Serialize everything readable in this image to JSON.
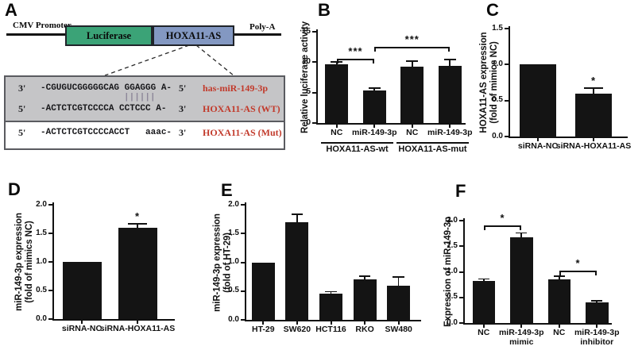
{
  "figure": {
    "background": "#ffffff",
    "bar_color": "#141414",
    "axis_color": "#111111"
  },
  "panels": {
    "a": {
      "letter": "A",
      "construct": {
        "promoter_label": "CMV Promoter",
        "gene_label": "Luciferase",
        "insert_label": "HOXA11-AS",
        "polya_label": "Poly-A",
        "gene_color": "#3ba377",
        "insert_color": "#8398c2"
      },
      "alignment": {
        "pairing_marks": "||||||",
        "pairing_color": "#8d8799",
        "name_color": "#c23a2b",
        "rows": [
          {
            "left": "3'",
            "seq": "-CGUGUCGGGGGCAG GGAGGG A-",
            "right": "5'",
            "name": "has-miR-149-3p"
          },
          {
            "left": "5'",
            "seq": "-ACTCTCGTCCCCA CCTCCC A-",
            "right": "3'",
            "name": "HOXA11-AS (WT)"
          },
          {
            "left": "5'",
            "seq": "-ACTCTCGTCCCCACCT   aaac-",
            "right": "3'",
            "name": "HOXA11-AS (Mut)"
          }
        ]
      }
    },
    "b": {
      "letter": "B"
    },
    "c": {
      "letter": "C"
    },
    "d": {
      "letter": "D"
    },
    "e": {
      "letter": "E"
    },
    "f": {
      "letter": "F"
    }
  },
  "chart_data": [
    {
      "id": "B",
      "type": "bar",
      "ylabel": "Relative luciferase activity",
      "categories": [
        "NC",
        "miR-149-3p",
        "NC",
        "miR-149-3p"
      ],
      "values": [
        9.6,
        5.3,
        9.3,
        9.4
      ],
      "errors": [
        0.4,
        0.4,
        0.9,
        1.0
      ],
      "ylim": [
        0,
        15
      ],
      "yticks": [
        "0",
        "5",
        "10",
        "15"
      ],
      "grid": false,
      "group_labels": [
        {
          "label": "HOXA11-AS-wt",
          "from": 0,
          "to": 1
        },
        {
          "label": "HOXA11-AS-mut",
          "from": 2,
          "to": 3
        }
      ],
      "brackets": [
        {
          "from": 0,
          "to": 1,
          "y": 10.6,
          "label": "***"
        },
        {
          "from": 1,
          "to": 3,
          "y": 12.5,
          "label": "***"
        }
      ]
    },
    {
      "id": "C",
      "type": "bar",
      "ylabel": [
        "HOXA11-AS expression",
        "(fold of mimics NC)"
      ],
      "categories": [
        "siRNA-NC",
        "siRNA-HOXA11-AS"
      ],
      "values": [
        1.0,
        0.6
      ],
      "errors": [
        0,
        0.07
      ],
      "ylim": [
        0,
        1.5
      ],
      "yticks": [
        "0.0",
        "0.5",
        "1.0",
        "1.5"
      ],
      "grid": false,
      "stars": [
        {
          "bar": 1,
          "label": "*"
        }
      ]
    },
    {
      "id": "D",
      "type": "bar",
      "ylabel": [
        "miR-149-3p expression",
        "(fold of mimics NC)"
      ],
      "categories": [
        "siRNA-NC",
        "siRNA-HOXA11-AS"
      ],
      "values": [
        1.0,
        1.6
      ],
      "errors": [
        0,
        0.07
      ],
      "ylim": [
        0,
        2.0
      ],
      "yticks": [
        "0.0",
        "0.5",
        "1.0",
        "1.5",
        "2.0"
      ],
      "grid": false,
      "stars": [
        {
          "bar": 1,
          "label": "*"
        }
      ]
    },
    {
      "id": "E",
      "type": "bar",
      "ylabel": [
        "miR-149-3p expression",
        "(fold of HT-29)"
      ],
      "categories": [
        "HT-29",
        "SW620",
        "HCT116",
        "RKO",
        "SW480"
      ],
      "values": [
        1.0,
        1.7,
        0.45,
        0.7,
        0.6
      ],
      "errors": [
        0,
        0.13,
        0.04,
        0.06,
        0.15
      ],
      "ylim": [
        0,
        2.0
      ],
      "yticks": [
        "0.0",
        "0.5",
        "1.0",
        "1.5",
        "2.0"
      ],
      "grid": false
    },
    {
      "id": "F",
      "type": "bar",
      "ylabel": "Expression of miR-149-3p",
      "categories": [
        "NC",
        [
          "miR-149-3p",
          "mimic"
        ],
        "NC",
        [
          "miR-149-3p",
          "inhibitor"
        ]
      ],
      "values": [
        0.82,
        1.67,
        0.86,
        0.4
      ],
      "errors": [
        0.04,
        0.09,
        0.05,
        0.03
      ],
      "ylim": [
        0,
        2.0
      ],
      "yticks": [
        "0.0",
        "0.5",
        "1.0",
        "1.5",
        "2.0"
      ],
      "grid": false,
      "brackets": [
        {
          "from": 0,
          "to": 1,
          "y": 1.9,
          "label": "*"
        },
        {
          "from": 2,
          "to": 3,
          "y": 1.02,
          "label": "*"
        }
      ]
    }
  ]
}
